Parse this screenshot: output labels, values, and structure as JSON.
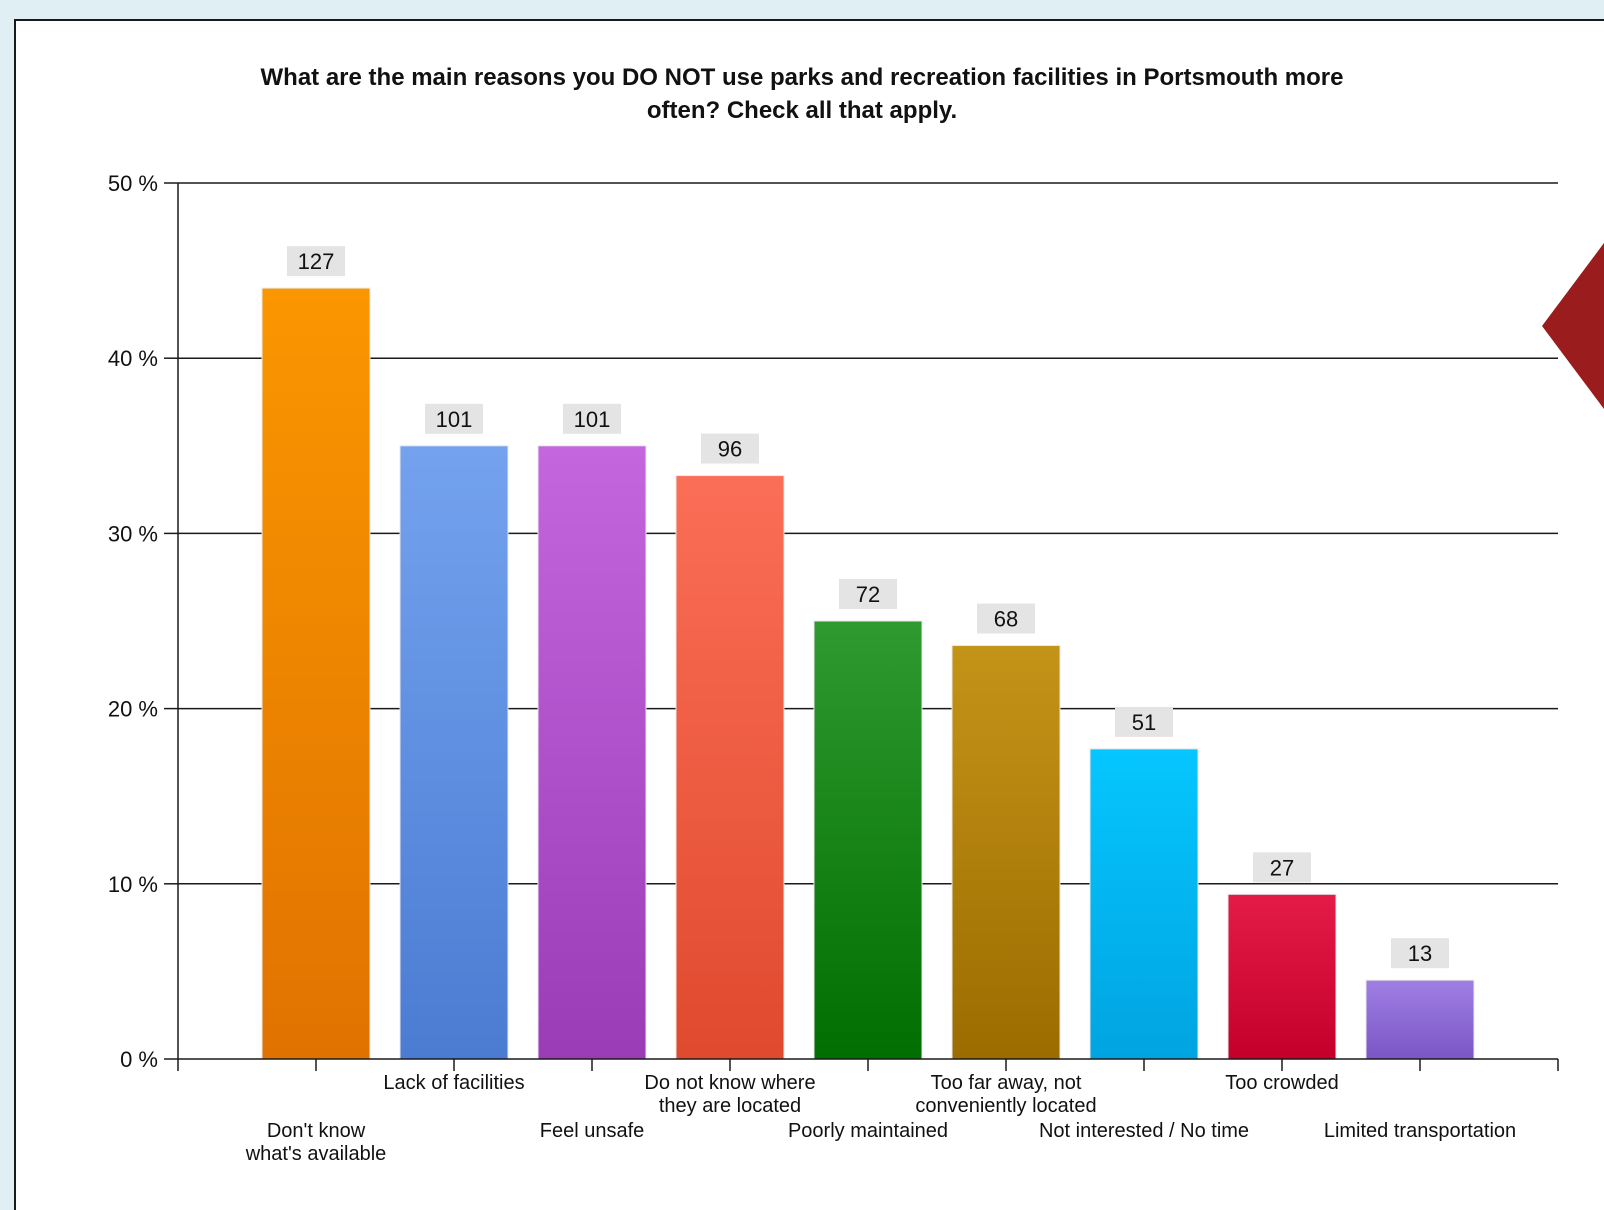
{
  "chart_data": {
    "type": "bar",
    "title_lines": [
      "What are the main reasons you DO NOT use parks and recreation facilities in Portsmouth more",
      "often?  Check all that apply."
    ],
    "xlabel": "",
    "ylabel": "",
    "ylim": [
      0,
      50
    ],
    "yticks": [
      0,
      10,
      20,
      30,
      40,
      50
    ],
    "ytick_labels": [
      "0 %",
      "10 %",
      "20 %",
      "30 %",
      "40 %",
      "50 %"
    ],
    "grid": "horizontal",
    "categories": [
      "Don't know what's available",
      "Lack of facilities",
      "Feel unsafe",
      "Do not know where they are located",
      "Poorly maintained",
      "Too far away, not conveniently located",
      "Not interested / No time",
      "Too crowded",
      "Limited transportation"
    ],
    "category_label_lines": [
      [
        "Don't know",
        "what's available"
      ],
      [
        "Lack of facilities"
      ],
      [
        "Feel unsafe"
      ],
      [
        "Do not know where",
        "they are located"
      ],
      [
        "Poorly maintained"
      ],
      [
        "Too far away, not",
        "conveniently located"
      ],
      [
        "Not interested / No time"
      ],
      [
        "Too crowded"
      ],
      [
        "Limited transportation"
      ]
    ],
    "values": [
      44.0,
      35.0,
      35.0,
      33.3,
      25.0,
      23.6,
      17.7,
      9.4,
      4.5
    ],
    "data_labels": [
      "127",
      "101",
      "101",
      "96",
      "72",
      "68",
      "51",
      "27",
      "13"
    ],
    "colors": [
      [
        "#fb9600",
        "#e07300"
      ],
      [
        "#74a2ef",
        "#4a7cd2"
      ],
      [
        "#c466dd",
        "#9a3cb6"
      ],
      [
        "#fb6e57",
        "#e04a2e"
      ],
      [
        "#2e9a30",
        "#006e00"
      ],
      [
        "#c49418",
        "#9c6c00"
      ],
      [
        "#06c6ff",
        "#00a4e0"
      ],
      [
        "#e41b47",
        "#c4002a"
      ],
      [
        "#a07fe4",
        "#7a56c6"
      ]
    ]
  },
  "decor": {
    "marker_color": "#9b1c1c",
    "marker_icon": "triangle-left-icon"
  }
}
